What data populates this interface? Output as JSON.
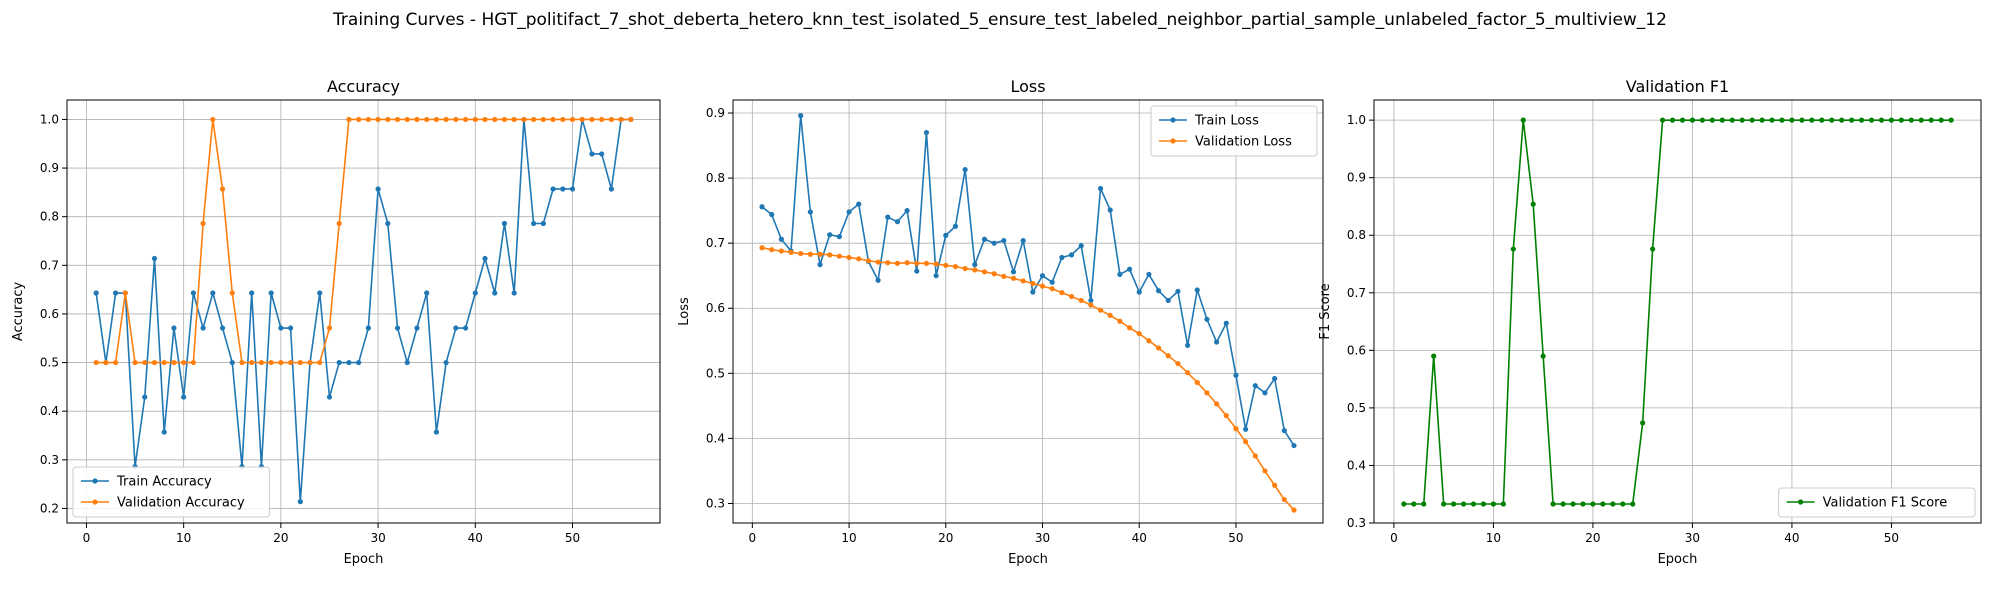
{
  "figure": {
    "suptitle": "Training Curves - HGT_politifact_7_shot_deberta_hetero_knn_test_isolated_5_ensure_test_labeled_neighbor_partial_sample_unlabeled_factor_5_multiview_12"
  },
  "chart_data": [
    {
      "type": "line",
      "title": "Accuracy",
      "xlabel": "Epoch",
      "ylabel": "Accuracy",
      "xlim": [
        -2,
        59
      ],
      "ylim": [
        0.17,
        1.04
      ],
      "xticks": [
        0,
        10,
        20,
        30,
        40,
        50
      ],
      "yticks": [
        0.2,
        0.3,
        0.4,
        0.5,
        0.6,
        0.7,
        0.8,
        0.9,
        1.0
      ],
      "grid": true,
      "legend": "lower-left",
      "x": [
        1,
        2,
        3,
        4,
        5,
        6,
        7,
        8,
        9,
        10,
        11,
        12,
        13,
        14,
        15,
        16,
        17,
        18,
        19,
        20,
        21,
        22,
        23,
        24,
        25,
        26,
        27,
        28,
        29,
        30,
        31,
        32,
        33,
        34,
        35,
        36,
        37,
        38,
        39,
        40,
        41,
        42,
        43,
        44,
        45,
        46,
        47,
        48,
        49,
        50,
        51,
        52,
        53,
        54,
        55,
        56
      ],
      "series": [
        {
          "name": "Train Accuracy",
          "color": "#1f77b4",
          "values": [
            0.643,
            0.5,
            0.643,
            0.643,
            0.286,
            0.429,
            0.714,
            0.357,
            0.571,
            0.429,
            0.643,
            0.571,
            0.643,
            0.571,
            0.5,
            0.286,
            0.643,
            0.286,
            0.643,
            0.571,
            0.571,
            0.214,
            0.5,
            0.643,
            0.429,
            0.5,
            0.5,
            0.5,
            0.571,
            0.857,
            0.786,
            0.571,
            0.5,
            0.571,
            0.643,
            0.357,
            0.5,
            0.571,
            0.571,
            0.643,
            0.714,
            0.643,
            0.786,
            0.643,
            1.0,
            0.786,
            0.786,
            0.857,
            0.857,
            0.857,
            1.0,
            0.929,
            0.929,
            0.857,
            1.0,
            1.0
          ]
        },
        {
          "name": "Validation Accuracy",
          "color": "#ff7f0e",
          "values": [
            0.5,
            0.5,
            0.5,
            0.643,
            0.5,
            0.5,
            0.5,
            0.5,
            0.5,
            0.5,
            0.5,
            0.786,
            1.0,
            0.857,
            0.643,
            0.5,
            0.5,
            0.5,
            0.5,
            0.5,
            0.5,
            0.5,
            0.5,
            0.5,
            0.571,
            0.786,
            1.0,
            1.0,
            1.0,
            1.0,
            1.0,
            1.0,
            1.0,
            1.0,
            1.0,
            1.0,
            1.0,
            1.0,
            1.0,
            1.0,
            1.0,
            1.0,
            1.0,
            1.0,
            1.0,
            1.0,
            1.0,
            1.0,
            1.0,
            1.0,
            1.0,
            1.0,
            1.0,
            1.0,
            1.0,
            1.0
          ]
        }
      ]
    },
    {
      "type": "line",
      "title": "Loss",
      "xlabel": "Epoch",
      "ylabel": "Loss",
      "xlim": [
        -2,
        59
      ],
      "ylim": [
        0.27,
        0.92
      ],
      "xticks": [
        0,
        10,
        20,
        30,
        40,
        50
      ],
      "yticks": [
        0.3,
        0.4,
        0.5,
        0.6,
        0.7,
        0.8,
        0.9
      ],
      "grid": true,
      "legend": "upper-right",
      "x": [
        1,
        2,
        3,
        4,
        5,
        6,
        7,
        8,
        9,
        10,
        11,
        12,
        13,
        14,
        15,
        16,
        17,
        18,
        19,
        20,
        21,
        22,
        23,
        24,
        25,
        26,
        27,
        28,
        29,
        30,
        31,
        32,
        33,
        34,
        35,
        36,
        37,
        38,
        39,
        40,
        41,
        42,
        43,
        44,
        45,
        46,
        47,
        48,
        49,
        50,
        51,
        52,
        53,
        54,
        55,
        56
      ],
      "series": [
        {
          "name": "Train Loss",
          "color": "#1f77b4",
          "values": [
            0.756,
            0.744,
            0.706,
            0.688,
            0.896,
            0.748,
            0.667,
            0.713,
            0.71,
            0.748,
            0.76,
            0.672,
            0.643,
            0.74,
            0.733,
            0.75,
            0.657,
            0.87,
            0.65,
            0.712,
            0.726,
            0.813,
            0.667,
            0.706,
            0.7,
            0.704,
            0.656,
            0.704,
            0.625,
            0.65,
            0.64,
            0.678,
            0.682,
            0.696,
            0.612,
            0.784,
            0.751,
            0.652,
            0.66,
            0.625,
            0.652,
            0.627,
            0.612,
            0.626,
            0.543,
            0.628,
            0.583,
            0.548,
            0.577,
            0.497,
            0.414,
            0.481,
            0.47,
            0.492,
            0.412,
            0.389
          ]
        },
        {
          "name": "Validation Loss",
          "color": "#ff7f0e",
          "values": [
            0.693,
            0.69,
            0.688,
            0.686,
            0.684,
            0.683,
            0.683,
            0.682,
            0.68,
            0.678,
            0.676,
            0.673,
            0.671,
            0.67,
            0.669,
            0.67,
            0.669,
            0.669,
            0.668,
            0.666,
            0.664,
            0.661,
            0.659,
            0.656,
            0.653,
            0.649,
            0.646,
            0.642,
            0.638,
            0.634,
            0.63,
            0.624,
            0.618,
            0.612,
            0.605,
            0.597,
            0.589,
            0.58,
            0.57,
            0.561,
            0.55,
            0.539,
            0.527,
            0.515,
            0.501,
            0.486,
            0.47,
            0.453,
            0.435,
            0.415,
            0.395,
            0.373,
            0.35,
            0.328,
            0.306,
            0.29
          ]
        }
      ]
    },
    {
      "type": "line",
      "title": "Validation F1",
      "xlabel": "Epoch",
      "ylabel": "F1 Score",
      "xlim": [
        -2,
        59
      ],
      "ylim": [
        0.3,
        1.035
      ],
      "xticks": [
        0,
        10,
        20,
        30,
        40,
        50
      ],
      "yticks": [
        0.3,
        0.4,
        0.5,
        0.6,
        0.7,
        0.8,
        0.9,
        1.0
      ],
      "grid": true,
      "legend": "lower-right",
      "x": [
        1,
        2,
        3,
        4,
        5,
        6,
        7,
        8,
        9,
        10,
        11,
        12,
        13,
        14,
        15,
        16,
        17,
        18,
        19,
        20,
        21,
        22,
        23,
        24,
        25,
        26,
        27,
        28,
        29,
        30,
        31,
        32,
        33,
        34,
        35,
        36,
        37,
        38,
        39,
        40,
        41,
        42,
        43,
        44,
        45,
        46,
        47,
        48,
        49,
        50,
        51,
        52,
        53,
        54,
        55,
        56
      ],
      "series": [
        {
          "name": "Validation F1 Score",
          "color": "#008000",
          "values": [
            0.333,
            0.333,
            0.333,
            0.59,
            0.333,
            0.333,
            0.333,
            0.333,
            0.333,
            0.333,
            0.333,
            0.776,
            1.0,
            0.854,
            0.59,
            0.333,
            0.333,
            0.333,
            0.333,
            0.333,
            0.333,
            0.333,
            0.333,
            0.333,
            0.474,
            0.776,
            1.0,
            1.0,
            1.0,
            1.0,
            1.0,
            1.0,
            1.0,
            1.0,
            1.0,
            1.0,
            1.0,
            1.0,
            1.0,
            1.0,
            1.0,
            1.0,
            1.0,
            1.0,
            1.0,
            1.0,
            1.0,
            1.0,
            1.0,
            1.0,
            1.0,
            1.0,
            1.0,
            1.0,
            1.0,
            1.0
          ]
        }
      ]
    }
  ]
}
